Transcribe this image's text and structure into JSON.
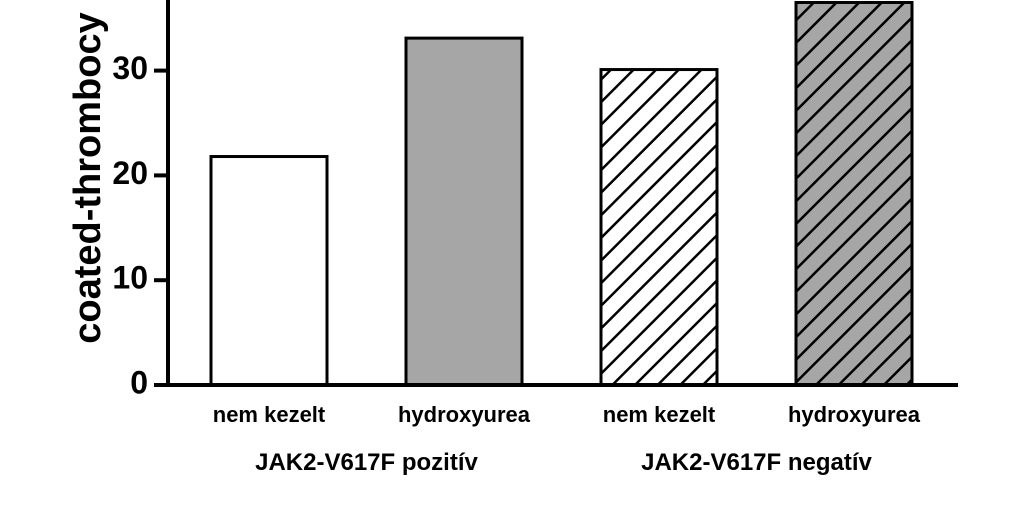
{
  "chart_data": {
    "type": "bar",
    "ylabel": "coated-thrombocy",
    "yticks": [
      "0",
      "10",
      "20",
      "30"
    ],
    "ylim": [
      0,
      37
    ],
    "categories": [
      "nem kezelt",
      "hydroxyurea",
      "nem kezelt",
      "hydroxyurea"
    ],
    "groups": [
      {
        "label": "JAK2-V617F pozitív",
        "indices": [
          0,
          1
        ]
      },
      {
        "label": "JAK2-V617F negatív",
        "indices": [
          2,
          3
        ]
      }
    ],
    "values": [
      21.8,
      33.1,
      30.1,
      36.5
    ],
    "fills": [
      "#ffffff",
      "#a6a6a6",
      "#ffffff",
      "#a6a6a6"
    ],
    "hatched": [
      false,
      false,
      true,
      true
    ]
  }
}
